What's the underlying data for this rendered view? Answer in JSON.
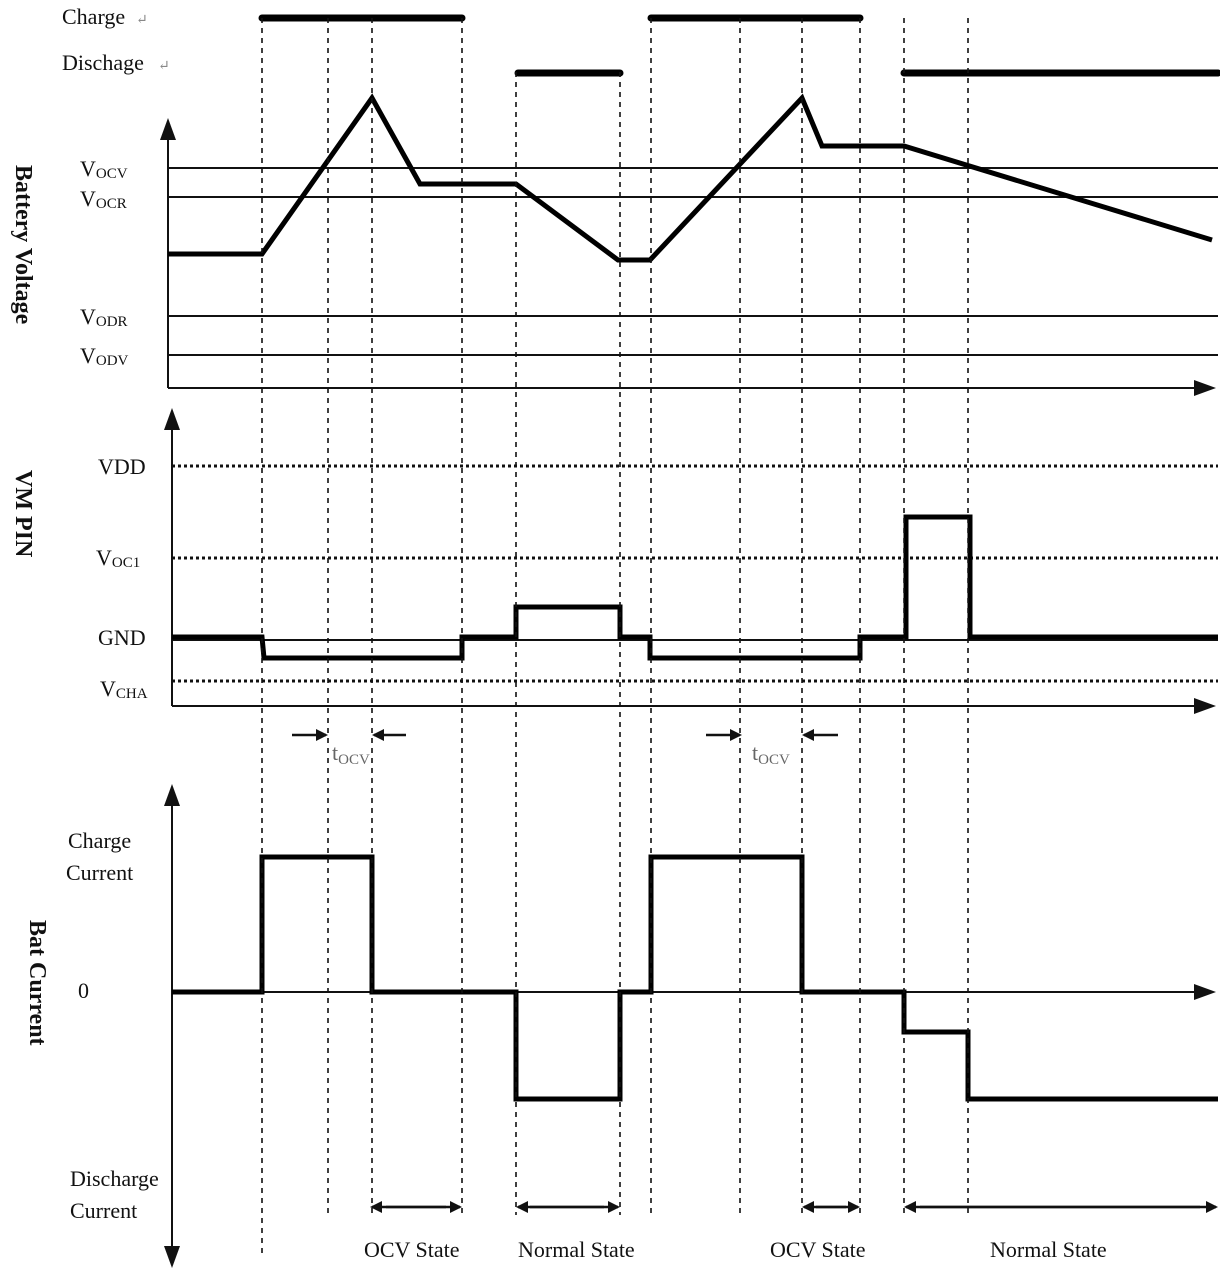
{
  "labels": {
    "charge": "Charge",
    "discharge": "Dischage",
    "mark": "↵",
    "battery_voltage": "Battery Voltage",
    "vocv_main": "V",
    "vocv_sub": "OCV",
    "vocr_main": "V",
    "vocr_sub": "OCR",
    "vodr_main": "V",
    "vodr_sub": "ODR",
    "vodv_main": "V",
    "vodv_sub": "ODV",
    "vm_pin": "VM PIN",
    "vdd": "VDD",
    "voc1_main": "V",
    "voc1_sub": "OC1",
    "gnd": "GND",
    "vcha_main": "V",
    "vcha_sub": "CHA",
    "tocv_main": "t",
    "tocv_sub": "OCV",
    "bat_current": "Bat Current",
    "charge_current_1": "Charge",
    "charge_current_2": "Current",
    "zero": "0",
    "discharge_current_1": "Discharge",
    "discharge_current_2": "Current",
    "ocv_state": "OCV State",
    "normal_state": "Normal State"
  }
}
